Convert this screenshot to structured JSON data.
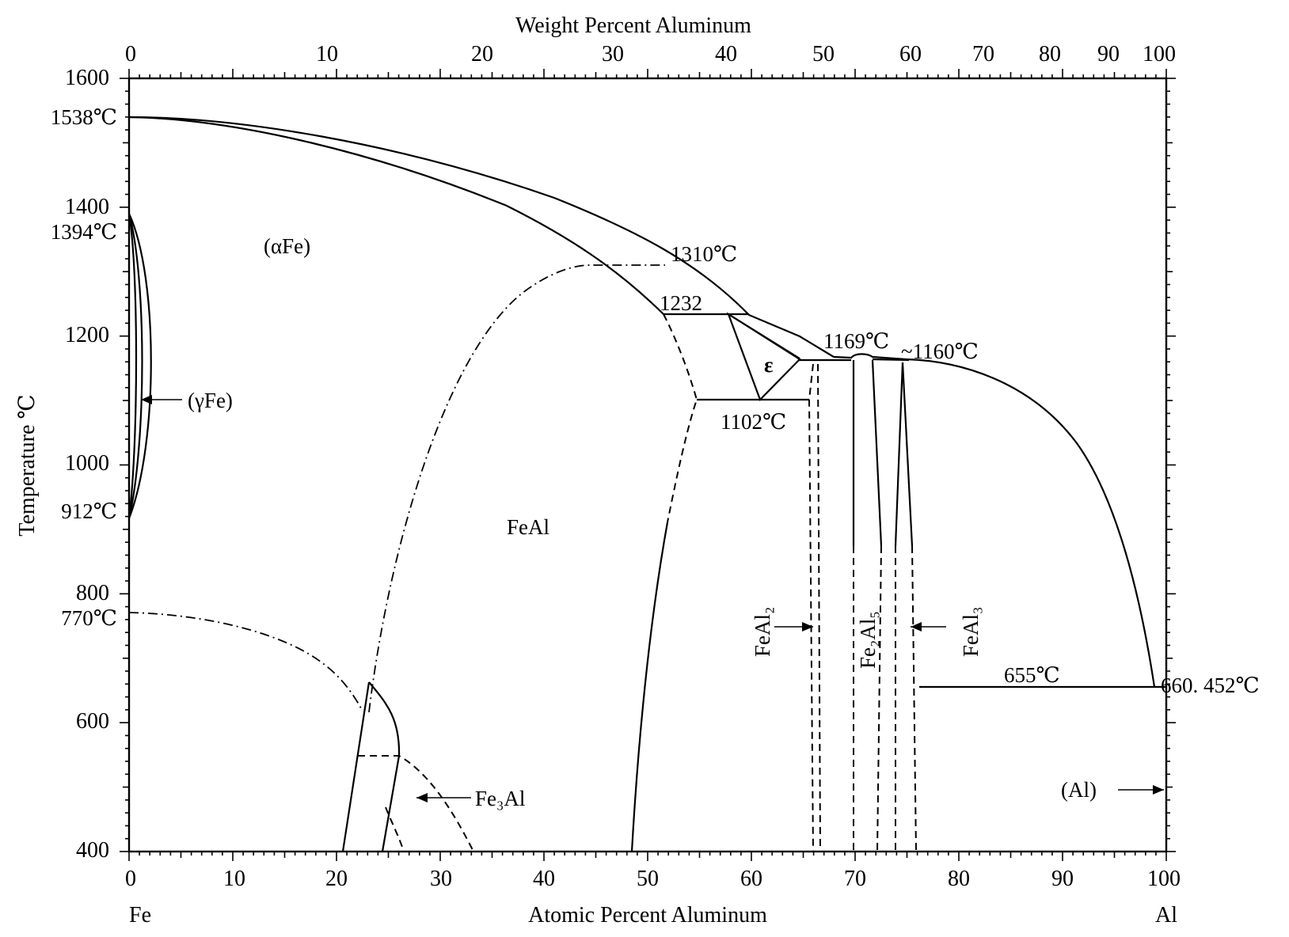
{
  "diagram": {
    "top_axis": {
      "title": "Weight Percent Aluminum",
      "ticks": [
        "0",
        "10",
        "20",
        "30",
        "40",
        "50",
        "60",
        "70",
        "80",
        "90",
        "100"
      ]
    },
    "bottom_axis": {
      "title": "Atomic Percent Aluminum",
      "ticks": [
        "0",
        "10",
        "20",
        "30",
        "40",
        "50",
        "60",
        "70",
        "80",
        "90",
        "100"
      ],
      "left_element": "Fe",
      "right_element": "Al"
    },
    "left_axis": {
      "title": "Temperature ℃",
      "ticks": [
        "400",
        "600",
        "800",
        "1000",
        "1200",
        "1400",
        "1600"
      ]
    },
    "temperature_labels": {
      "fe_melting": "1538℃",
      "fe_gamma_upper": "1394℃",
      "fe_gamma_lower": "912℃",
      "curie": "770℃",
      "order_max": "1310℃",
      "eutectic_1232": "1232",
      "eutectoid": "1102℃",
      "congruent": "1169℃",
      "peritectic": "~1160℃",
      "al_eutectic": "655℃",
      "al_melting": "660. 452℃"
    },
    "phase_labels": {
      "alpha_fe": "(αFe)",
      "gamma_fe": "(γFe)",
      "feal": "FeAl",
      "epsilon": "ε",
      "fe3al": "Fe₃Al",
      "feal2": "FeAl₂",
      "fe2al5": "Fe₂Al₅",
      "feal3": "FeAl₃",
      "al": "(Al)"
    }
  }
}
